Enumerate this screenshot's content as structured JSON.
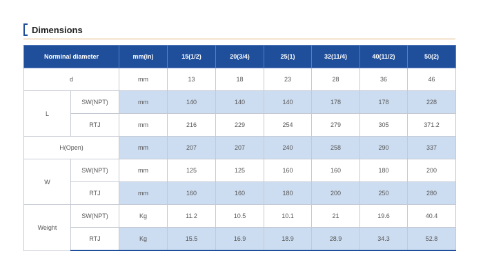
{
  "title": "Dimensions",
  "header": {
    "name": "Norminal diameter",
    "unit": "mm(in)",
    "sizes": [
      "15(1/2)",
      "20(3/4)",
      "25(1)",
      "32(11/4)",
      "40(11/2)",
      "50(2)"
    ]
  },
  "rows": {
    "d": {
      "label": "d",
      "unit": "mm",
      "values": [
        "13",
        "18",
        "23",
        "28",
        "36",
        "46"
      ]
    },
    "l_sw": {
      "group": "L",
      "label": "SW(NPT)",
      "unit": "mm",
      "values": [
        "140",
        "140",
        "140",
        "178",
        "178",
        "228"
      ]
    },
    "l_rtj": {
      "label": "RTJ",
      "unit": "mm",
      "values": [
        "216",
        "229",
        "254",
        "279",
        "305",
        "371.2"
      ]
    },
    "h": {
      "label": "H(Open)",
      "unit": "mm",
      "values": [
        "207",
        "207",
        "240",
        "258",
        "290",
        "337"
      ]
    },
    "w_sw": {
      "group": "W",
      "label": "SW(NPT)",
      "unit": "mm",
      "values": [
        "125",
        "125",
        "160",
        "160",
        "180",
        "200"
      ]
    },
    "w_rtj": {
      "label": "RTJ",
      "unit": "mm",
      "values": [
        "160",
        "160",
        "180",
        "200",
        "250",
        "280"
      ]
    },
    "wt_sw": {
      "group": "Weight",
      "label": "SW(NPT)",
      "unit": "Kg",
      "values": [
        "11.2",
        "10.5",
        "10.1",
        "21",
        "19.6",
        "40.4"
      ]
    },
    "wt_rtj": {
      "label": "RTJ",
      "unit": "Kg",
      "values": [
        "15.5",
        "16.9",
        "18.9",
        "28.9",
        "34.3",
        "52.8"
      ]
    }
  }
}
